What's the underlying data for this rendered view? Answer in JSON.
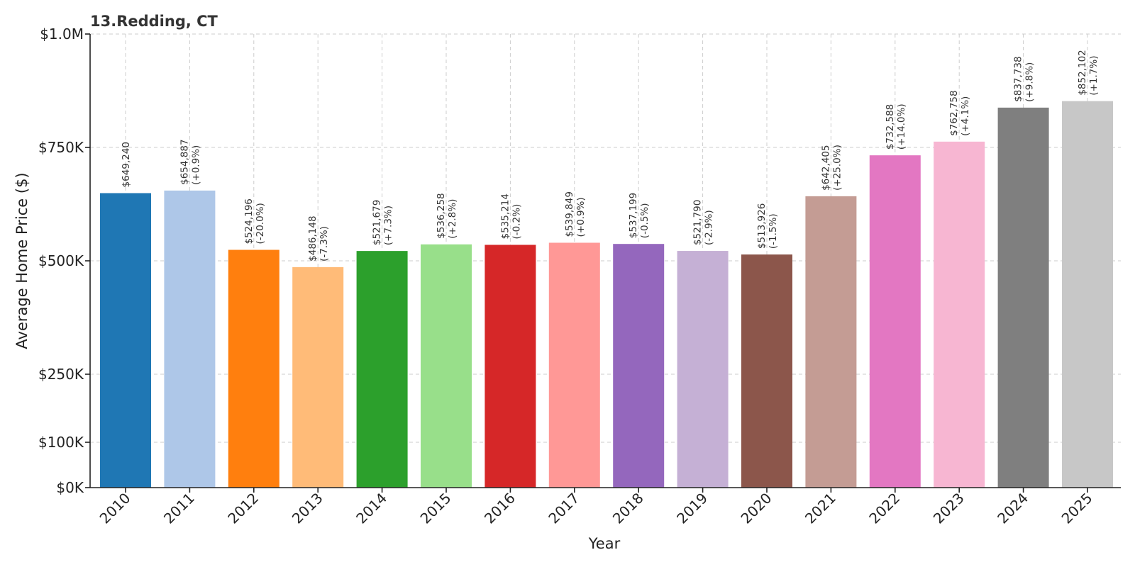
{
  "chart_data": {
    "type": "bar",
    "title": "13.Redding, CT",
    "xlabel": "Year",
    "ylabel": "Average Home Price ($)",
    "ylim": [
      0,
      1000000
    ],
    "grid": true,
    "yticks": [
      {
        "value": 0,
        "label": "$0K"
      },
      {
        "value": 100000,
        "label": "$100K"
      },
      {
        "value": 250000,
        "label": "$250K"
      },
      {
        "value": 500000,
        "label": "$500K"
      },
      {
        "value": 750000,
        "label": "$750K"
      },
      {
        "value": 1000000,
        "label": "$1.0M"
      }
    ],
    "categories": [
      "2010",
      "2011",
      "2012",
      "2013",
      "2014",
      "2015",
      "2016",
      "2017",
      "2018",
      "2019",
      "2020",
      "2021",
      "2022",
      "2023",
      "2024",
      "2025"
    ],
    "values": [
      649240,
      654887,
      524196,
      486148,
      521679,
      536258,
      535214,
      539849,
      537199,
      521790,
      513926,
      642405,
      732588,
      762758,
      837738,
      852102
    ],
    "price_labels": [
      "$649,240",
      "$654,887",
      "$524,196",
      "$486,148",
      "$521,679",
      "$536,258",
      "$535,214",
      "$539,849",
      "$537,199",
      "$521,790",
      "$513,926",
      "$642,405",
      "$732,588",
      "$762,758",
      "$837,738",
      "$852,102"
    ],
    "change_labels": [
      "",
      "(+0.9%)",
      "(-20.0%)",
      "(-7.3%)",
      "(+7.3%)",
      "(+2.8%)",
      "(-0.2%)",
      "(+0.9%)",
      "(-0.5%)",
      "(-2.9%)",
      "(-1.5%)",
      "(+25.0%)",
      "(+14.0%)",
      "(+4.1%)",
      "(+9.8%)",
      "(+1.7%)"
    ],
    "colors": [
      "#1f77b4",
      "#aec7e8",
      "#ff7f0e",
      "#ffbb78",
      "#2ca02c",
      "#98df8a",
      "#d62728",
      "#ff9896",
      "#9467bd",
      "#c5b0d5",
      "#8c564b",
      "#c49c94",
      "#e377c2",
      "#f7b6d2",
      "#7f7f7f",
      "#c7c7c7"
    ]
  }
}
